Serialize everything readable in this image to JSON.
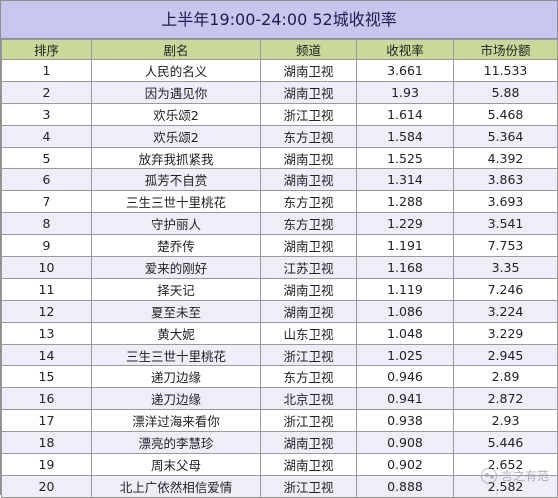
{
  "title": "上半年19:00-24:00 52城收视率",
  "columns": [
    "排序",
    "剧名",
    "频道",
    "收视率",
    "市场份额"
  ],
  "rows": [
    [
      "1",
      "人民的名义",
      "湖南卫视",
      "3.661",
      "11.533"
    ],
    [
      "2",
      "因为遇见你",
      "湖南卫视",
      "1.93",
      "5.88"
    ],
    [
      "3",
      "欢乐颂2",
      "浙江卫视",
      "1.614",
      "5.468"
    ],
    [
      "4",
      "欢乐颂2",
      "东方卫视",
      "1.584",
      "5.364"
    ],
    [
      "5",
      "放弃我抓紧我",
      "湖南卫视",
      "1.525",
      "4.392"
    ],
    [
      "6",
      "孤芳不自赏",
      "湖南卫视",
      "1.314",
      "3.863"
    ],
    [
      "7",
      "三生三世十里桃花",
      "东方卫视",
      "1.288",
      "3.693"
    ],
    [
      "8",
      "守护丽人",
      "东方卫视",
      "1.229",
      "3.541"
    ],
    [
      "9",
      "楚乔传",
      "湖南卫视",
      "1.191",
      "7.753"
    ],
    [
      "10",
      "爱来的刚好",
      "江苏卫视",
      "1.168",
      "3.35"
    ],
    [
      "11",
      "择天记",
      "湖南卫视",
      "1.119",
      "7.246"
    ],
    [
      "12",
      "夏至未至",
      "湖南卫视",
      "1.086",
      "3.224"
    ],
    [
      "13",
      "黄大妮",
      "山东卫视",
      "1.048",
      "3.229"
    ],
    [
      "14",
      "三生三世十里桃花",
      "浙江卫视",
      "1.025",
      "2.945"
    ],
    [
      "15",
      "递刀边缘",
      "东方卫视",
      "0.946",
      "2.89"
    ],
    [
      "16",
      "递刀边缘",
      "北京卫视",
      "0.941",
      "2.872"
    ],
    [
      "17",
      "漂洋过海来看你",
      "浙江卫视",
      "0.938",
      "2.93"
    ],
    [
      "18",
      "漂亮的李慧珍",
      "湖南卫视",
      "0.908",
      "5.446"
    ],
    [
      "19",
      "周末父母",
      "湖南卫视",
      "0.902",
      "2.652"
    ],
    [
      "20",
      "北上广依然相信爱情",
      "浙江卫视",
      "0.888",
      "2.582"
    ]
  ],
  "watermark": {
    "text": "言之有范",
    "icon": "wechat-icon"
  }
}
